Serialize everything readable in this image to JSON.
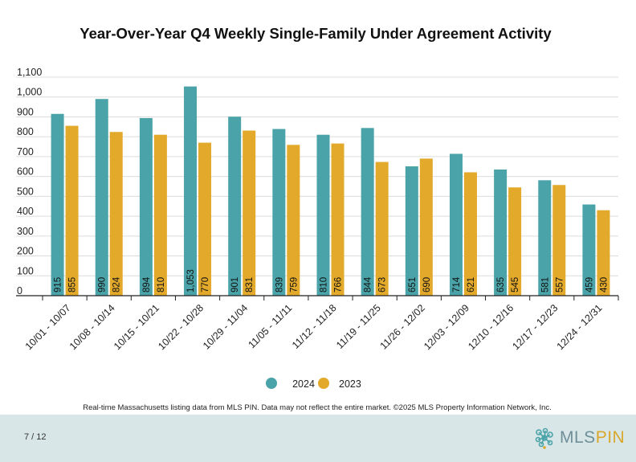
{
  "page": {
    "page_number": "7 / 12"
  },
  "footnote": "Real-time Massachusetts listing data from MLS PIN. Data may not reflect the entire market. ©2025 MLS Property Information Network, Inc.",
  "logo": {
    "mls": "MLS",
    "pin": "PIN"
  },
  "chart_data": {
    "type": "bar",
    "title": "Year-Over-Year Q4 Weekly Single-Family Under Agreement Activity",
    "xlabel": "",
    "ylabel": "",
    "ylim": [
      0,
      1100
    ],
    "yticks": [
      0,
      100,
      200,
      300,
      400,
      500,
      600,
      700,
      800,
      900,
      1000,
      1100
    ],
    "ytick_labels": [
      "0",
      "100",
      "200",
      "300",
      "400",
      "500",
      "600",
      "700",
      "800",
      "900",
      "1,000",
      "1,100"
    ],
    "grid": true,
    "legend_position": "bottom",
    "categories": [
      "10/01 - 10/07",
      "10/08 - 10/14",
      "10/15 - 10/21",
      "10/22 - 10/28",
      "10/29 - 11/04",
      "11/05 - 11/11",
      "11/12 - 11/18",
      "11/19 - 11/25",
      "11/26 - 12/02",
      "12/03 - 12/09",
      "12/10 - 12/16",
      "12/17 - 12/23",
      "12/24 - 12/31"
    ],
    "series": [
      {
        "name": "2024",
        "color": "#4aa3a8",
        "values": [
          915,
          990,
          894,
          1053,
          901,
          839,
          810,
          844,
          651,
          714,
          635,
          581,
          459
        ],
        "labels": [
          "915",
          "990",
          "894",
          "1,053",
          "901",
          "839",
          "810",
          "844",
          "651",
          "714",
          "635",
          "581",
          "459"
        ]
      },
      {
        "name": "2023",
        "color": "#e2a92b",
        "values": [
          855,
          824,
          810,
          770,
          831,
          759,
          766,
          673,
          690,
          621,
          545,
          557,
          430
        ],
        "labels": [
          "855",
          "824",
          "810",
          "770",
          "831",
          "759",
          "766",
          "673",
          "690",
          "621",
          "545",
          "557",
          "430"
        ]
      }
    ]
  }
}
